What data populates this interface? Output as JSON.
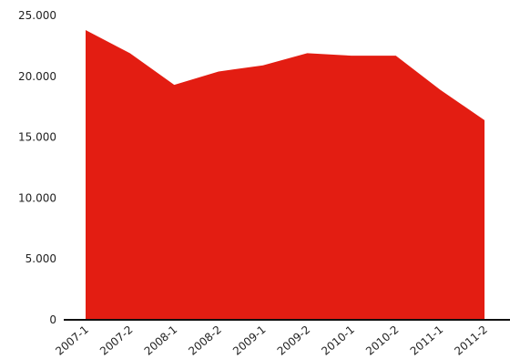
{
  "chart_data": {
    "type": "area",
    "categories": [
      "2007-1",
      "2007-2",
      "2008-1",
      "2008-2",
      "2009-1",
      "2009-2",
      "2010-1",
      "2010-2",
      "2011-1",
      "2011-2"
    ],
    "values": [
      23800,
      21900,
      19300,
      20400,
      20900,
      21900,
      21700,
      21700,
      18900,
      16400
    ],
    "ylim": [
      0,
      25000
    ],
    "yticks": [
      0,
      5000,
      10000,
      15000,
      20000,
      25000
    ],
    "ytick_labels": [
      "0",
      "5.000",
      "10.000",
      "15.000",
      "20.000",
      "25.000"
    ],
    "grid": false,
    "legend": "none",
    "title": "",
    "xlabel": "",
    "ylabel": "",
    "colors": {
      "fill": "#e31d12",
      "axis": "#111111",
      "text": "#222222"
    }
  }
}
